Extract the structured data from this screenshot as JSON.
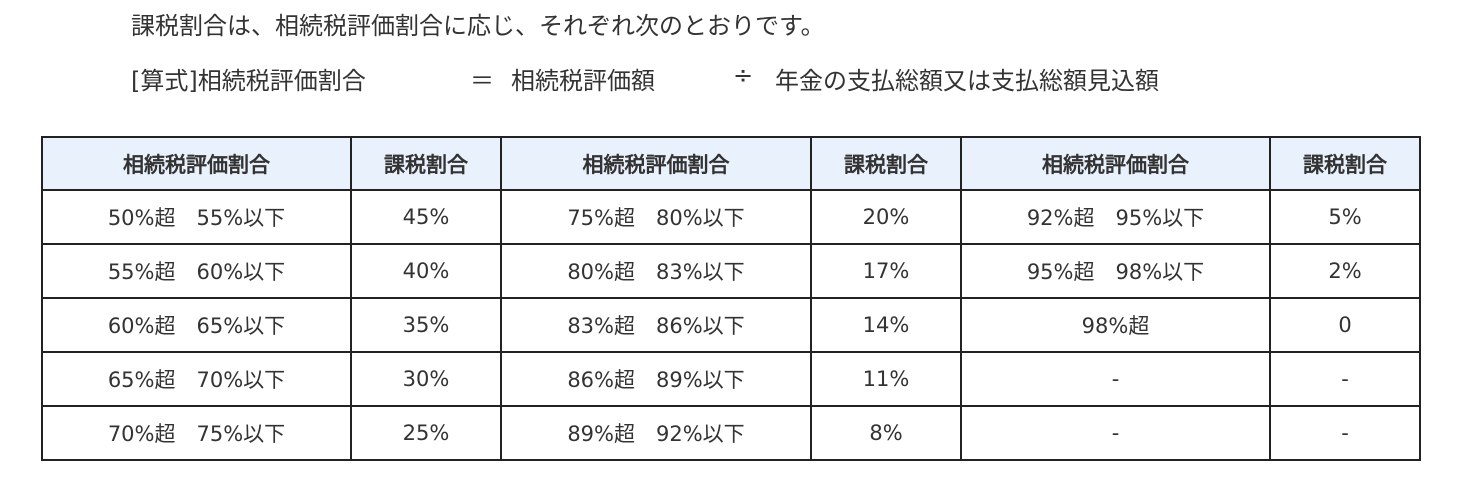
{
  "intro": "課税割合は、相続税評価割合に応じ、それぞれ次のとおりです。",
  "formula": [
    "[算式]相続税評価割合",
    "＝",
    "相続税評価額",
    "÷",
    "年金の支払総額又は支払総額見込額"
  ],
  "table": {
    "header": [
      "相続税評価割合",
      "課税割合",
      "相続税評価割合",
      "課税割合",
      "相続税評価割合",
      "課税割合"
    ],
    "rows": [
      [
        "50%超　55%以下",
        "45%",
        "75%超　80%以下",
        "20%",
        "92%超　95%以下",
        "5%"
      ],
      [
        "55%超　60%以下",
        "40%",
        "80%超　83%以下",
        "17%",
        "95%超　98%以下",
        "2%"
      ],
      [
        "60%超　65%以下",
        "35%",
        "83%超　86%以下",
        "14%",
        "98%超",
        "0"
      ],
      [
        "65%超　70%以下",
        "30%",
        "86%超　89%以下",
        "11%",
        "-",
        "-"
      ],
      [
        "70%超　75%以下",
        "25%",
        "89%超　92%以下",
        "8%",
        "-",
        "-"
      ]
    ]
  }
}
